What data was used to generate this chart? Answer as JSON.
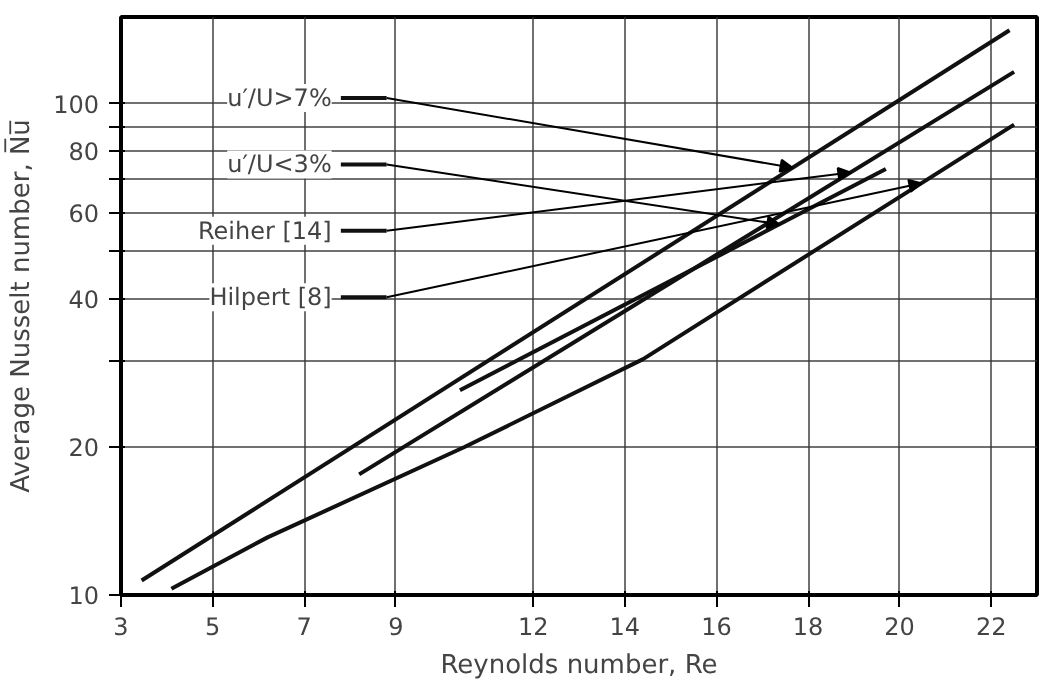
{
  "chart_data": {
    "type": "line",
    "xlabel": "Reynolds number, Re",
    "ylabel": "Average Nusselt number, N̅u̅",
    "xlim": [
      3,
      23
    ],
    "ylim": [
      10,
      150
    ],
    "log": "y",
    "grid": true,
    "legend": "top left",
    "marker": "none",
    "line_style": "solid",
    "xticks": [
      3,
      5,
      7,
      9,
      12,
      14,
      16,
      18,
      20,
      22
    ],
    "yticks": [
      10,
      20,
      {
        "value": 30,
        "label": null
      },
      40,
      {
        "value": 50,
        "label": null
      },
      60,
      {
        "value": 70,
        "label": null
      },
      80,
      {
        "value": 90,
        "label": null
      },
      100
    ],
    "series": [
      {
        "name": "u′/U>7%",
        "color": "#111111",
        "x": [
          3.45,
          22.4
        ],
        "values": [
          10.7,
          141
        ]
      },
      {
        "name": "u′/U<3%",
        "color": "#111111",
        "x": [
          10.4,
          19.7
        ],
        "values": [
          26.1,
          73.6
        ]
      },
      {
        "name": "Reiher [14]",
        "color": "#111111",
        "x": [
          8.2,
          22.5
        ],
        "values": [
          17.6,
          116
        ]
      },
      {
        "name": "Hilpert [8]",
        "color": "#111111",
        "x": [
          4.1,
          6.2,
          10.5,
          14.4,
          22.5
        ],
        "values": [
          10.3,
          13.1,
          20,
          30.2,
          90.6
        ]
      }
    ]
  }
}
